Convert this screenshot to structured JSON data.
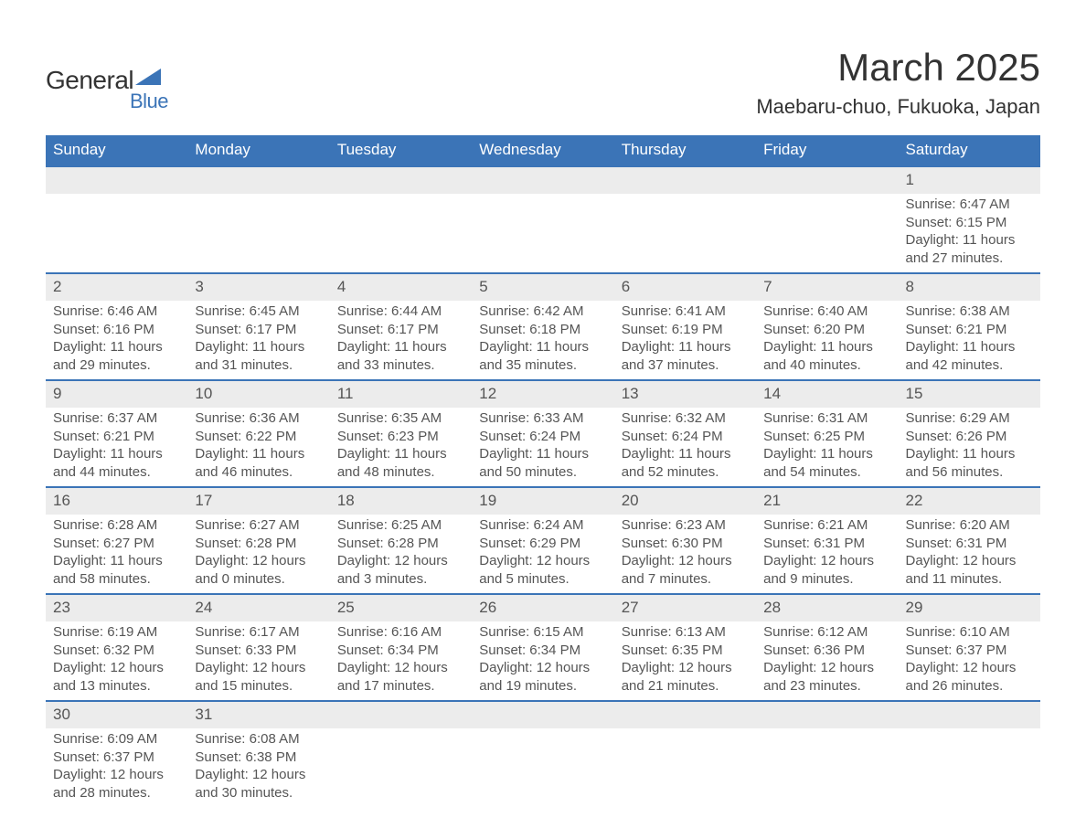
{
  "brand": {
    "text_top": "General",
    "text_bottom": "Blue",
    "color_general": "#333333",
    "color_blue": "#3b74b7"
  },
  "header": {
    "title": "March 2025",
    "subtitle": "Maebaru-chuo, Fukuoka, Japan"
  },
  "styling": {
    "header_bg": "#3b74b7",
    "header_text": "#ffffff",
    "daynum_bg": "#ececec",
    "row_border": "#3b74b7",
    "body_text": "#555555",
    "title_fontsize": 42,
    "subtitle_fontsize": 22,
    "th_fontsize": 17,
    "cell_fontsize": 15
  },
  "weekdays": [
    "Sunday",
    "Monday",
    "Tuesday",
    "Wednesday",
    "Thursday",
    "Friday",
    "Saturday"
  ],
  "weeks": [
    [
      null,
      null,
      null,
      null,
      null,
      null,
      {
        "d": "1",
        "sr": "Sunrise: 6:47 AM",
        "ss": "Sunset: 6:15 PM",
        "dl1": "Daylight: 11 hours",
        "dl2": "and 27 minutes."
      }
    ],
    [
      {
        "d": "2",
        "sr": "Sunrise: 6:46 AM",
        "ss": "Sunset: 6:16 PM",
        "dl1": "Daylight: 11 hours",
        "dl2": "and 29 minutes."
      },
      {
        "d": "3",
        "sr": "Sunrise: 6:45 AM",
        "ss": "Sunset: 6:17 PM",
        "dl1": "Daylight: 11 hours",
        "dl2": "and 31 minutes."
      },
      {
        "d": "4",
        "sr": "Sunrise: 6:44 AM",
        "ss": "Sunset: 6:17 PM",
        "dl1": "Daylight: 11 hours",
        "dl2": "and 33 minutes."
      },
      {
        "d": "5",
        "sr": "Sunrise: 6:42 AM",
        "ss": "Sunset: 6:18 PM",
        "dl1": "Daylight: 11 hours",
        "dl2": "and 35 minutes."
      },
      {
        "d": "6",
        "sr": "Sunrise: 6:41 AM",
        "ss": "Sunset: 6:19 PM",
        "dl1": "Daylight: 11 hours",
        "dl2": "and 37 minutes."
      },
      {
        "d": "7",
        "sr": "Sunrise: 6:40 AM",
        "ss": "Sunset: 6:20 PM",
        "dl1": "Daylight: 11 hours",
        "dl2": "and 40 minutes."
      },
      {
        "d": "8",
        "sr": "Sunrise: 6:38 AM",
        "ss": "Sunset: 6:21 PM",
        "dl1": "Daylight: 11 hours",
        "dl2": "and 42 minutes."
      }
    ],
    [
      {
        "d": "9",
        "sr": "Sunrise: 6:37 AM",
        "ss": "Sunset: 6:21 PM",
        "dl1": "Daylight: 11 hours",
        "dl2": "and 44 minutes."
      },
      {
        "d": "10",
        "sr": "Sunrise: 6:36 AM",
        "ss": "Sunset: 6:22 PM",
        "dl1": "Daylight: 11 hours",
        "dl2": "and 46 minutes."
      },
      {
        "d": "11",
        "sr": "Sunrise: 6:35 AM",
        "ss": "Sunset: 6:23 PM",
        "dl1": "Daylight: 11 hours",
        "dl2": "and 48 minutes."
      },
      {
        "d": "12",
        "sr": "Sunrise: 6:33 AM",
        "ss": "Sunset: 6:24 PM",
        "dl1": "Daylight: 11 hours",
        "dl2": "and 50 minutes."
      },
      {
        "d": "13",
        "sr": "Sunrise: 6:32 AM",
        "ss": "Sunset: 6:24 PM",
        "dl1": "Daylight: 11 hours",
        "dl2": "and 52 minutes."
      },
      {
        "d": "14",
        "sr": "Sunrise: 6:31 AM",
        "ss": "Sunset: 6:25 PM",
        "dl1": "Daylight: 11 hours",
        "dl2": "and 54 minutes."
      },
      {
        "d": "15",
        "sr": "Sunrise: 6:29 AM",
        "ss": "Sunset: 6:26 PM",
        "dl1": "Daylight: 11 hours",
        "dl2": "and 56 minutes."
      }
    ],
    [
      {
        "d": "16",
        "sr": "Sunrise: 6:28 AM",
        "ss": "Sunset: 6:27 PM",
        "dl1": "Daylight: 11 hours",
        "dl2": "and 58 minutes."
      },
      {
        "d": "17",
        "sr": "Sunrise: 6:27 AM",
        "ss": "Sunset: 6:28 PM",
        "dl1": "Daylight: 12 hours",
        "dl2": "and 0 minutes."
      },
      {
        "d": "18",
        "sr": "Sunrise: 6:25 AM",
        "ss": "Sunset: 6:28 PM",
        "dl1": "Daylight: 12 hours",
        "dl2": "and 3 minutes."
      },
      {
        "d": "19",
        "sr": "Sunrise: 6:24 AM",
        "ss": "Sunset: 6:29 PM",
        "dl1": "Daylight: 12 hours",
        "dl2": "and 5 minutes."
      },
      {
        "d": "20",
        "sr": "Sunrise: 6:23 AM",
        "ss": "Sunset: 6:30 PM",
        "dl1": "Daylight: 12 hours",
        "dl2": "and 7 minutes."
      },
      {
        "d": "21",
        "sr": "Sunrise: 6:21 AM",
        "ss": "Sunset: 6:31 PM",
        "dl1": "Daylight: 12 hours",
        "dl2": "and 9 minutes."
      },
      {
        "d": "22",
        "sr": "Sunrise: 6:20 AM",
        "ss": "Sunset: 6:31 PM",
        "dl1": "Daylight: 12 hours",
        "dl2": "and 11 minutes."
      }
    ],
    [
      {
        "d": "23",
        "sr": "Sunrise: 6:19 AM",
        "ss": "Sunset: 6:32 PM",
        "dl1": "Daylight: 12 hours",
        "dl2": "and 13 minutes."
      },
      {
        "d": "24",
        "sr": "Sunrise: 6:17 AM",
        "ss": "Sunset: 6:33 PM",
        "dl1": "Daylight: 12 hours",
        "dl2": "and 15 minutes."
      },
      {
        "d": "25",
        "sr": "Sunrise: 6:16 AM",
        "ss": "Sunset: 6:34 PM",
        "dl1": "Daylight: 12 hours",
        "dl2": "and 17 minutes."
      },
      {
        "d": "26",
        "sr": "Sunrise: 6:15 AM",
        "ss": "Sunset: 6:34 PM",
        "dl1": "Daylight: 12 hours",
        "dl2": "and 19 minutes."
      },
      {
        "d": "27",
        "sr": "Sunrise: 6:13 AM",
        "ss": "Sunset: 6:35 PM",
        "dl1": "Daylight: 12 hours",
        "dl2": "and 21 minutes."
      },
      {
        "d": "28",
        "sr": "Sunrise: 6:12 AM",
        "ss": "Sunset: 6:36 PM",
        "dl1": "Daylight: 12 hours",
        "dl2": "and 23 minutes."
      },
      {
        "d": "29",
        "sr": "Sunrise: 6:10 AM",
        "ss": "Sunset: 6:37 PM",
        "dl1": "Daylight: 12 hours",
        "dl2": "and 26 minutes."
      }
    ],
    [
      {
        "d": "30",
        "sr": "Sunrise: 6:09 AM",
        "ss": "Sunset: 6:37 PM",
        "dl1": "Daylight: 12 hours",
        "dl2": "and 28 minutes."
      },
      {
        "d": "31",
        "sr": "Sunrise: 6:08 AM",
        "ss": "Sunset: 6:38 PM",
        "dl1": "Daylight: 12 hours",
        "dl2": "and 30 minutes."
      },
      null,
      null,
      null,
      null,
      null
    ]
  ]
}
